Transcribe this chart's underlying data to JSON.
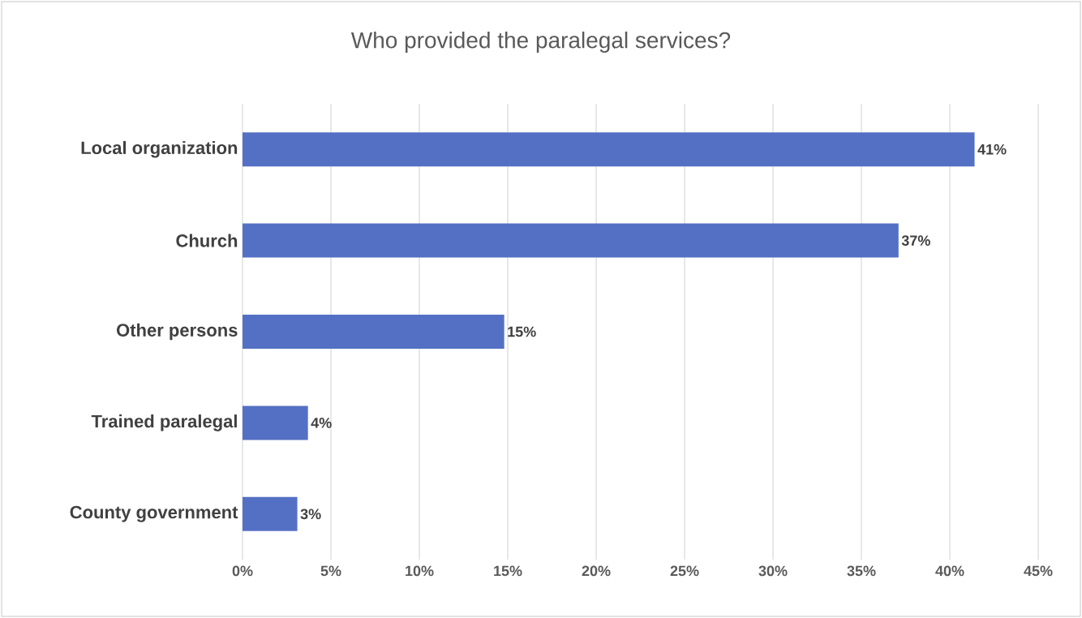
{
  "chart_data": {
    "type": "bar",
    "orientation": "horizontal",
    "title": "Who provided the paralegal services?",
    "categories": [
      "Local organization",
      "Church",
      "Other persons",
      "Trained paralegal",
      "County government"
    ],
    "values": [
      41.4,
      37.1,
      14.8,
      3.7,
      3.1
    ],
    "value_labels": [
      "41%",
      "37%",
      "15%",
      "4%",
      "3%"
    ],
    "color": "#5470c4",
    "xlim": [
      0,
      45
    ],
    "xticks": [
      {
        "value": 0,
        "label": "0%"
      },
      {
        "value": 5,
        "label": "5%"
      },
      {
        "value": 10,
        "label": "10%"
      },
      {
        "value": 15,
        "label": "15%"
      },
      {
        "value": 20,
        "label": "20%"
      },
      {
        "value": 25,
        "label": "25%"
      },
      {
        "value": 30,
        "label": "30%"
      },
      {
        "value": 35,
        "label": "35%"
      },
      {
        "value": 40,
        "label": "40%"
      },
      {
        "value": 45,
        "label": "45%"
      }
    ],
    "grid": "x"
  }
}
